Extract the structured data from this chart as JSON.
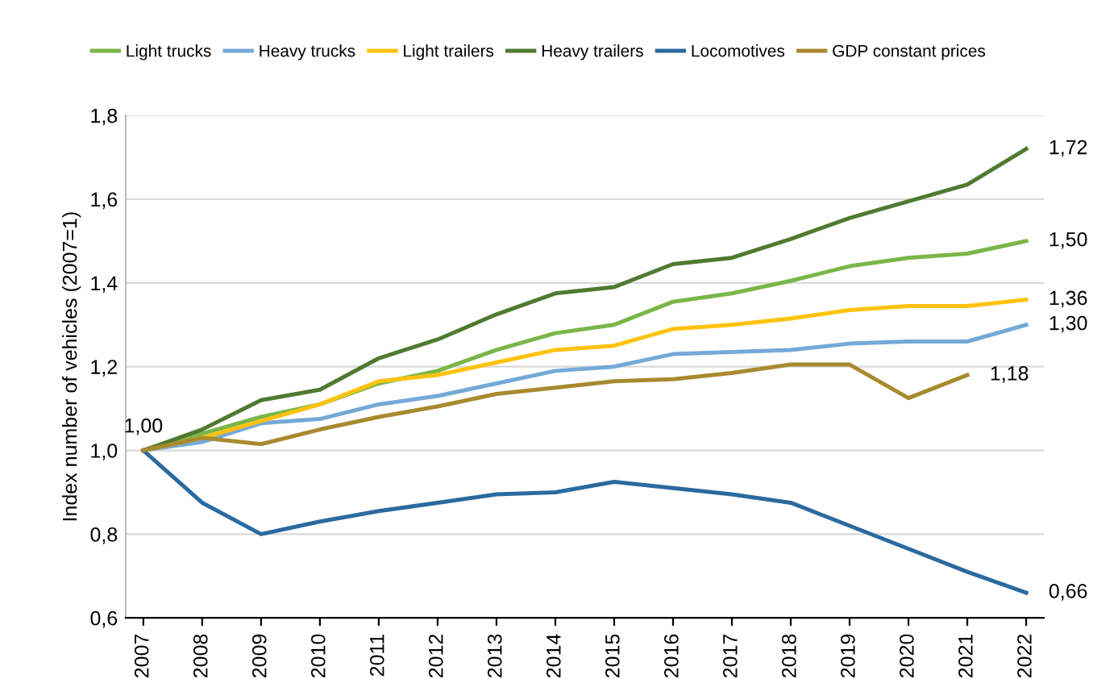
{
  "chart_data": {
    "type": "line",
    "ylabel": "Index number of vehicles (2007=1)",
    "categories": [
      "2007",
      "2008",
      "2009",
      "2010",
      "2011",
      "2012",
      "2013",
      "2014",
      "2015",
      "2016",
      "2017",
      "2018",
      "2019",
      "2020",
      "2021",
      "2022"
    ],
    "series": [
      {
        "name": "Light trucks",
        "color": "#7ab648",
        "values": [
          1.0,
          1.04,
          1.08,
          1.11,
          1.16,
          1.19,
          1.24,
          1.28,
          1.3,
          1.355,
          1.375,
          1.405,
          1.44,
          1.46,
          1.47,
          1.5
        ]
      },
      {
        "name": "Heavy trucks",
        "color": "#74a9d8",
        "values": [
          1.0,
          1.02,
          1.065,
          1.075,
          1.11,
          1.13,
          1.16,
          1.19,
          1.2,
          1.23,
          1.235,
          1.24,
          1.255,
          1.26,
          1.26,
          1.3
        ]
      },
      {
        "name": "Light trailers",
        "color": "#ffc20e",
        "values": [
          1.0,
          1.03,
          1.07,
          1.11,
          1.165,
          1.18,
          1.21,
          1.24,
          1.25,
          1.29,
          1.3,
          1.315,
          1.335,
          1.345,
          1.345,
          1.36
        ]
      },
      {
        "name": "Heavy trailers",
        "color": "#507a30",
        "values": [
          1.0,
          1.05,
          1.12,
          1.145,
          1.22,
          1.265,
          1.325,
          1.375,
          1.39,
          1.445,
          1.46,
          1.505,
          1.555,
          1.595,
          1.635,
          1.72
        ]
      },
      {
        "name": "Locomotives",
        "color": "#2b6aa0",
        "values": [
          1.0,
          0.875,
          0.8,
          0.83,
          0.855,
          0.875,
          0.895,
          0.9,
          0.925,
          0.91,
          0.895,
          0.875,
          0.82,
          0.765,
          0.71,
          0.66
        ]
      },
      {
        "name": "GDP constant prices",
        "color": "#a88a2e",
        "values": [
          1.0,
          1.03,
          1.015,
          1.05,
          1.08,
          1.105,
          1.135,
          1.15,
          1.165,
          1.17,
          1.185,
          1.205,
          1.205,
          1.125,
          1.18,
          null
        ]
      }
    ],
    "ylim": [
      0.6,
      1.8
    ],
    "yticks": [
      {
        "value": 0.6,
        "label": "0,6"
      },
      {
        "value": 0.8,
        "label": "0,8"
      },
      {
        "value": 1.0,
        "label": "1,0"
      },
      {
        "value": 1.2,
        "label": "1,2"
      },
      {
        "value": 1.4,
        "label": "1,4"
      },
      {
        "value": 1.6,
        "label": "1,6"
      },
      {
        "value": 1.8,
        "label": "1,8"
      }
    ],
    "grid": "y",
    "legend": "top",
    "marker": "none",
    "line_style": "solid",
    "annotations": [
      {
        "text": "1,00",
        "x": "2007",
        "y": 1.0
      },
      {
        "text": "1,72",
        "x": "2022",
        "y": 1.72
      },
      {
        "text": "1,50",
        "x": "2022",
        "y": 1.5
      },
      {
        "text": "1,36",
        "x": "2022",
        "y": 1.36
      },
      {
        "text": "1,30",
        "x": "2022",
        "y": 1.3
      },
      {
        "text": "1,18",
        "x": "2021",
        "y": 1.18
      },
      {
        "text": "0,66",
        "x": "2022",
        "y": 0.66
      }
    ]
  }
}
